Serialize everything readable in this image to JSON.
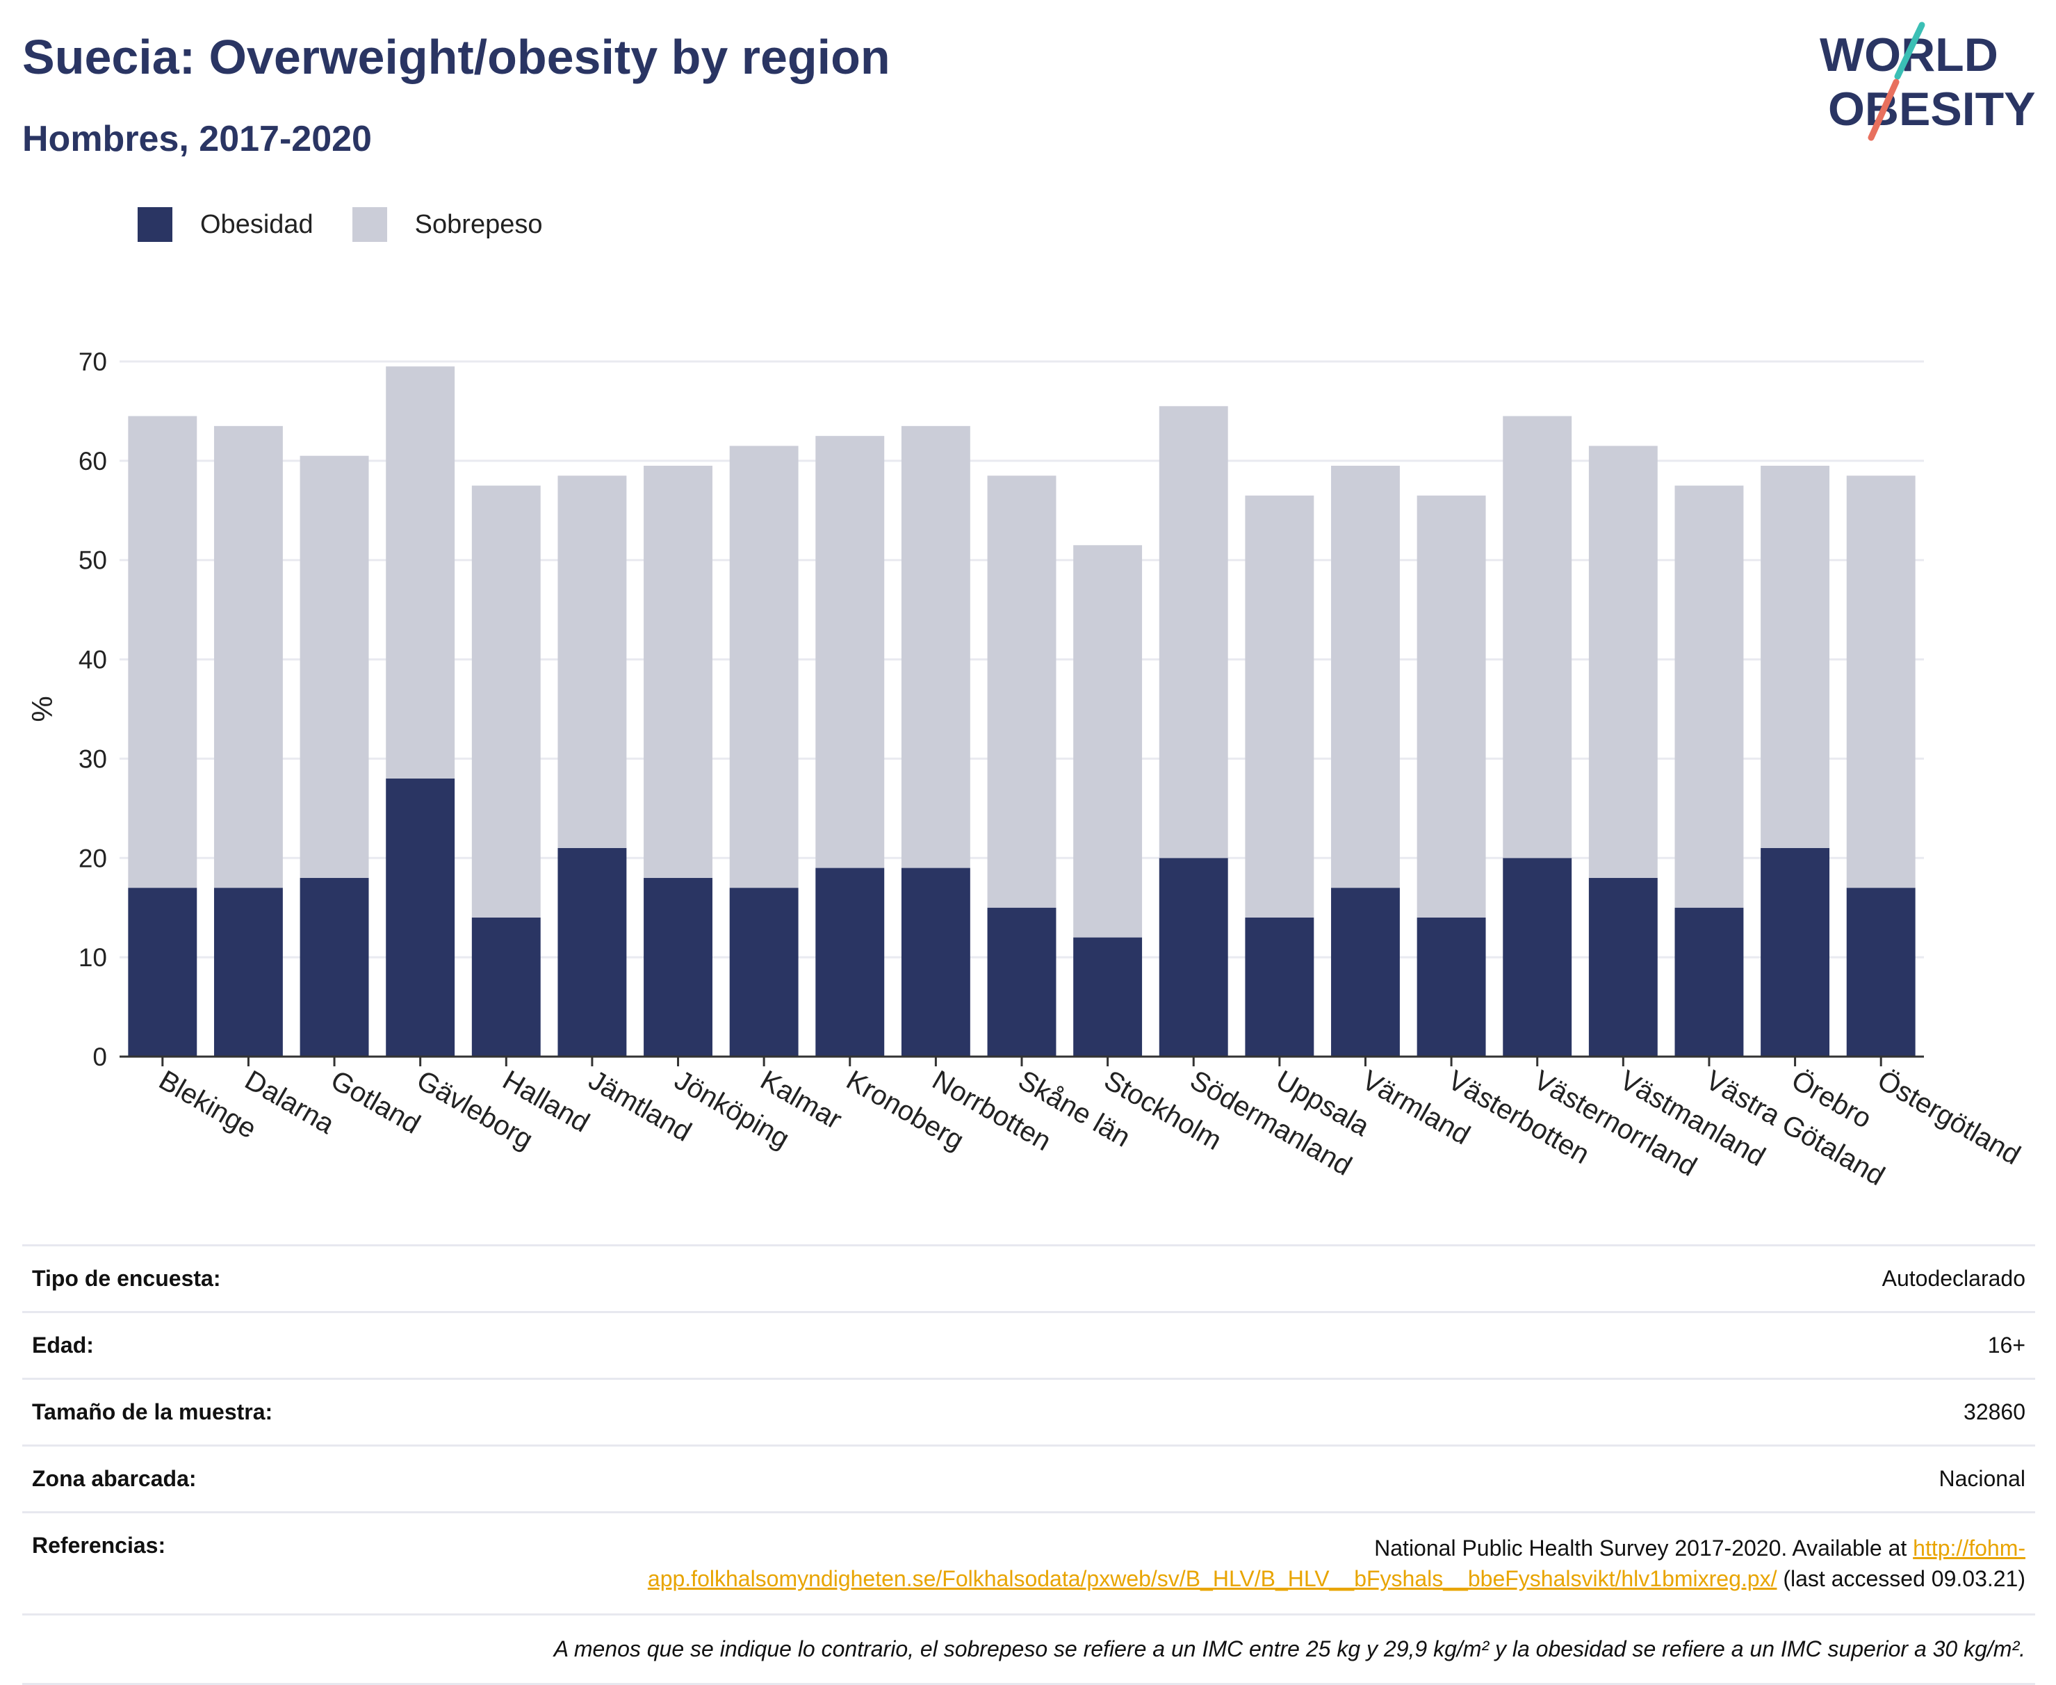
{
  "header": {
    "title": "Suecia: Overweight/obesity by region",
    "subtitle": "Hombres, 2017-2020"
  },
  "logo": {
    "line1": "WORLD",
    "line2": "OBESITY"
  },
  "colors": {
    "obesidad": "#2a3563",
    "sobrepeso": "#cbcdd8",
    "title": "#2a3563",
    "logo_teal": "#3bbfb5",
    "logo_coral": "#e8705e",
    "link": "#e8a400"
  },
  "legend": {
    "obesidad": "Obesidad",
    "sobrepeso": "Sobrepeso"
  },
  "chart_data": {
    "type": "bar",
    "stacked": true,
    "title": "Suecia: Overweight/obesity by region",
    "subtitle": "Hombres, 2017-2020",
    "xlabel": "",
    "ylabel": "%",
    "ylim": [
      0,
      70
    ],
    "yticks": [
      0,
      10,
      20,
      30,
      40,
      50,
      60,
      70
    ],
    "grid": true,
    "legend_position": "top-left",
    "categories": [
      "Blekinge",
      "Dalarna",
      "Gotland",
      "Gävleborg",
      "Halland",
      "Jämtland",
      "Jönköping",
      "Kalmar",
      "Kronoberg",
      "Norrbotten",
      "Skåne län",
      "Stockholm",
      "Södermanland",
      "Uppsala",
      "Värmland",
      "Västerbotten",
      "Västernorrland",
      "Västmanland",
      "Västra Götaland",
      "Örebro",
      "Östergötland"
    ],
    "series": [
      {
        "name": "Obesidad",
        "values": [
          17,
          17,
          18,
          28,
          14,
          21,
          18,
          17,
          19,
          19,
          15,
          12,
          20,
          14,
          17,
          14,
          20,
          18,
          15,
          21,
          17
        ]
      },
      {
        "name": "Sobrepeso",
        "values": [
          47.5,
          46.5,
          42.5,
          41.5,
          43.5,
          37.5,
          41.5,
          44.5,
          43.5,
          44.5,
          43.5,
          39.5,
          45.5,
          42.5,
          42.5,
          42.5,
          44.5,
          43.5,
          42.5,
          38.5,
          41.5
        ]
      }
    ]
  },
  "info": {
    "rows": [
      {
        "key": "Tipo de encuesta:",
        "value": "Autodeclarado"
      },
      {
        "key": "Edad:",
        "value": "16+"
      },
      {
        "key": "Tamaño de la muestra:",
        "value": "32860"
      },
      {
        "key": "Zona abarcada:",
        "value": "Nacional"
      }
    ],
    "references": {
      "key": "Referencias:",
      "text_before": "National Public Health Survey 2017-2020. Available at ",
      "link": "http://fohm-app.folkhalsomyndigheten.se/Folkhalsodata/pxweb/sv/B_HLV/B_HLV__bFyshals__bbeFyshalsvikt/hlv1bmixreg.px/",
      "text_after": " (last accessed 09.03.21)"
    },
    "note": "A menos que se indique lo contrario, el sobrepeso se refiere a un IMC entre 25 kg y 29,9 kg/m² y la obesidad se refiere a un IMC superior a 30 kg/m²."
  }
}
